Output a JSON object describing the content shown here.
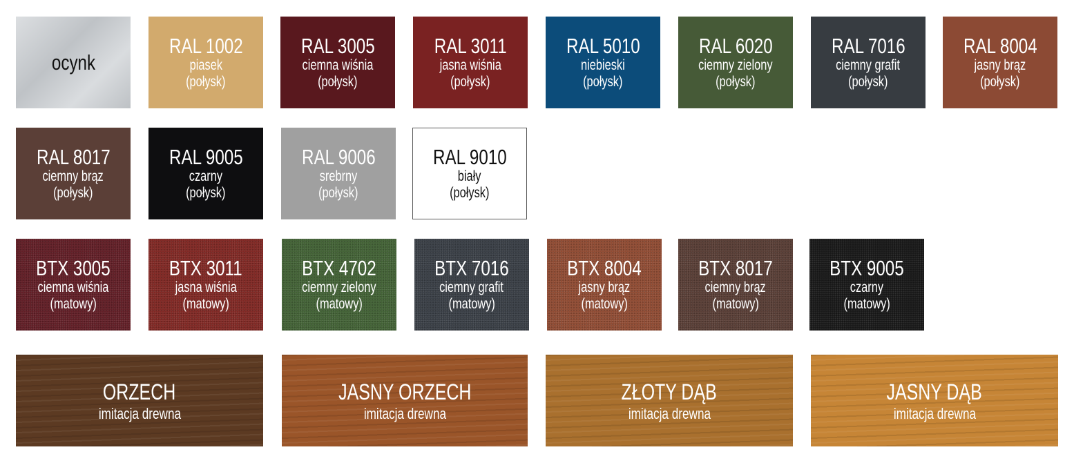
{
  "rows": [
    [
      {
        "title": "ocynk",
        "lines": [],
        "color": "#c9cdd1",
        "texture": "zinc",
        "text_color": "#111111"
      },
      {
        "title": "RAL 1002",
        "lines": [
          "piasek",
          "(połysk)"
        ],
        "color": "#d2aa6d"
      },
      {
        "title": "RAL 3005",
        "lines": [
          "ciemna wiśnia",
          "(połysk)"
        ],
        "color": "#59181e"
      },
      {
        "title": "RAL 3011",
        "lines": [
          "jasna wiśnia",
          "(połysk)"
        ],
        "color": "#7a2222"
      },
      {
        "title": "RAL 5010",
        "lines": [
          "niebieski",
          "(połysk)"
        ],
        "color": "#0c4c7a"
      },
      {
        "title": "RAL 6020",
        "lines": [
          "ciemny zielony",
          "(połysk)"
        ],
        "color": "#465a37"
      },
      {
        "title": "RAL 7016",
        "lines": [
          "ciemny grafit",
          "(połysk)"
        ],
        "color": "#373c41"
      },
      {
        "title": "RAL 8004",
        "lines": [
          "jasny brąz",
          "(połysk)"
        ],
        "color": "#8c4a34"
      }
    ],
    [
      {
        "title": "RAL 8017",
        "lines": [
          "ciemny brąz",
          "(połysk)"
        ],
        "color": "#5b3f37"
      },
      {
        "title": "RAL 9005",
        "lines": [
          "czarny",
          "(połysk)"
        ],
        "color": "#0e0e10"
      },
      {
        "title": "RAL 9006",
        "lines": [
          "srebrny",
          "(połysk)"
        ],
        "color": "#a0a0a0"
      },
      {
        "title": "RAL 9010",
        "lines": [
          "biały",
          "(połysk)"
        ],
        "color": "#ffffff",
        "text_color": "#111111",
        "bordered": true
      }
    ],
    [
      {
        "title": "BTX 3005",
        "lines": [
          "ciemna wiśnia",
          "(matowy)"
        ],
        "color": "#5e1a22",
        "texture": "noise"
      },
      {
        "title": "BTX 3011",
        "lines": [
          "jasna wiśnia",
          "(matowy)"
        ],
        "color": "#7d2420",
        "texture": "noise"
      },
      {
        "title": "BTX 4702",
        "lines": [
          "ciemny zielony",
          "(matowy)"
        ],
        "color": "#3f5f32",
        "texture": "noise"
      },
      {
        "title": "BTX 7016",
        "lines": [
          "ciemny grafit",
          "(matowy)"
        ],
        "color": "#363b42",
        "texture": "noise"
      },
      {
        "title": "BTX 8004",
        "lines": [
          "jasny brąz",
          "(matowy)"
        ],
        "color": "#8d4830",
        "texture": "noise"
      },
      {
        "title": "BTX 8017",
        "lines": [
          "ciemny brąz",
          "(matowy)"
        ],
        "color": "#553a32",
        "texture": "noise"
      },
      {
        "title": "BTX 9005",
        "lines": [
          "czarny",
          "(matowy)"
        ],
        "color": "#141414",
        "texture": "noise"
      }
    ],
    [
      {
        "title": "ORZECH",
        "lines": [
          "imitacja drewna"
        ],
        "color": "#5c3a22",
        "texture": "wood"
      },
      {
        "title": "JASNY ORZECH",
        "lines": [
          "imitacja drewna"
        ],
        "color": "#9a5529",
        "texture": "wood"
      },
      {
        "title": "ZŁOTY DĄB",
        "lines": [
          "imitacja drewna"
        ],
        "color": "#a9702e",
        "texture": "wood"
      },
      {
        "title": "JASNY DĄB",
        "lines": [
          "imitacja drewna"
        ],
        "color": "#c68536",
        "texture": "wood"
      }
    ]
  ]
}
